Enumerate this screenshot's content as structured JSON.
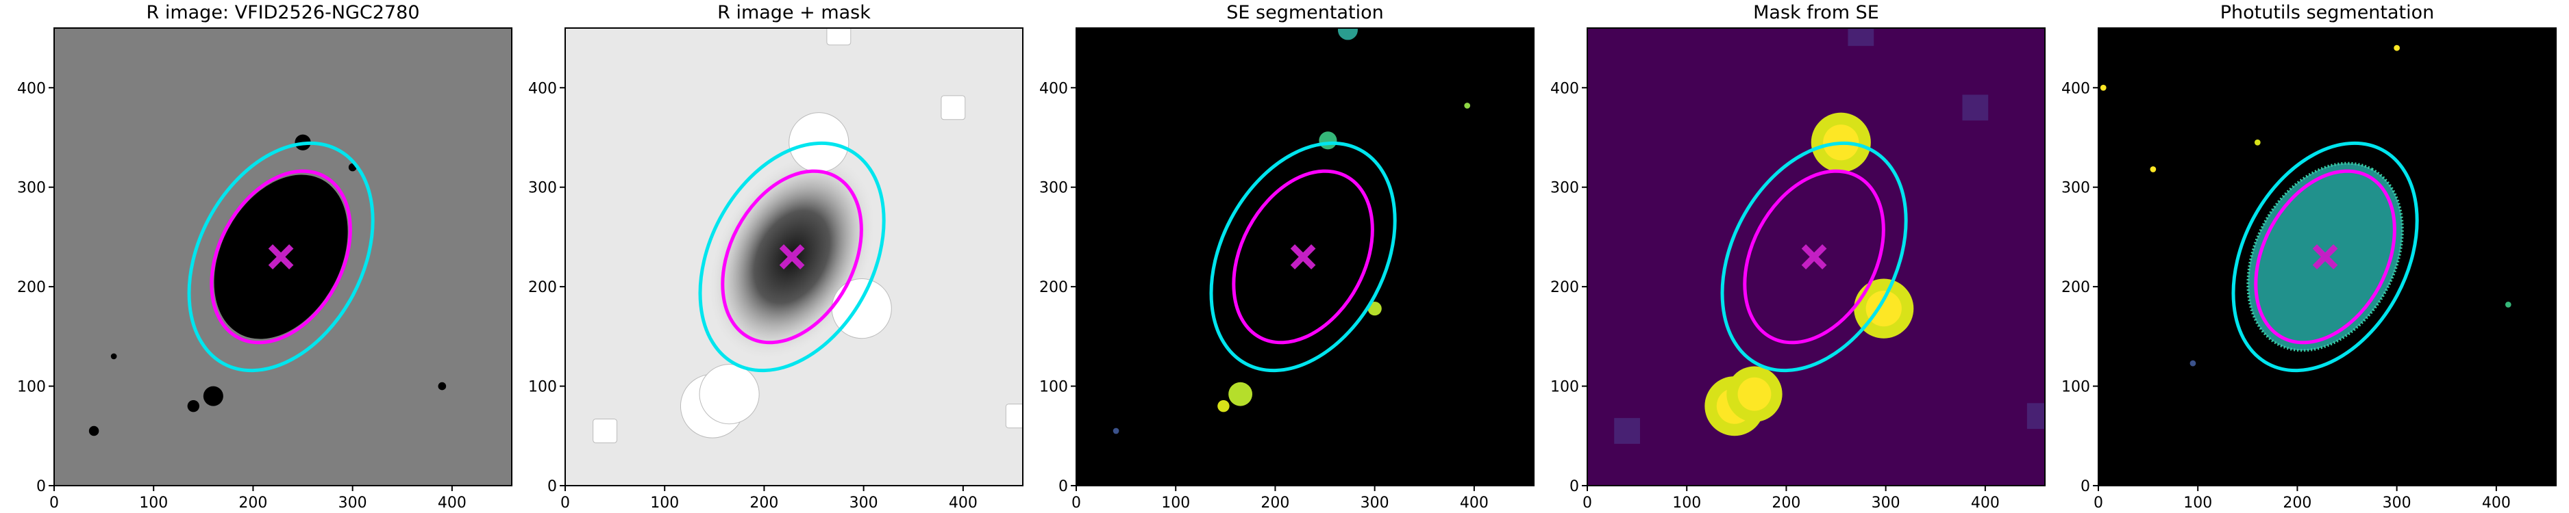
{
  "chart_data": [
    {
      "type": "image",
      "title": "R image: VFID2526-NGC2780",
      "background": "#7f7f7f",
      "xlim": [
        0,
        460
      ],
      "ylim": [
        0,
        460
      ],
      "xticks": [
        0,
        100,
        200,
        300,
        400
      ],
      "yticks": [
        0,
        100,
        200,
        300,
        400
      ],
      "ellipses": [
        {
          "center": [
            228,
            230
          ],
          "semi_axes": [
            92,
            62
          ],
          "angle": 62,
          "color": "#ff00ff"
        },
        {
          "center": [
            228,
            230
          ],
          "semi_axes": [
            122,
            82
          ],
          "angle": 62,
          "color": "#00e5ee"
        }
      ],
      "marker": {
        "x": 228,
        "y": 230,
        "color": "#c41fc4"
      }
    },
    {
      "type": "image",
      "title": "R image + mask",
      "background": "#e8e8e8",
      "xlim": [
        0,
        460
      ],
      "ylim": [
        0,
        460
      ],
      "xticks": [
        0,
        100,
        200,
        300,
        400
      ],
      "yticks": [
        0,
        100,
        200,
        300,
        400
      ],
      "ellipses": [
        {
          "center": [
            228,
            230
          ],
          "semi_axes": [
            92,
            62
          ],
          "angle": 62,
          "color": "#ff00ff"
        },
        {
          "center": [
            228,
            230
          ],
          "semi_axes": [
            122,
            82
          ],
          "angle": 62,
          "color": "#00e5ee"
        }
      ],
      "marker": {
        "x": 228,
        "y": 230,
        "color": "#c41fc4"
      }
    },
    {
      "type": "image",
      "title": "SE segmentation",
      "background": "#000000",
      "xlim": [
        0,
        460
      ],
      "ylim": [
        0,
        460
      ],
      "xticks": [
        0,
        100,
        200,
        300,
        400
      ],
      "yticks": [
        0,
        100,
        200,
        300,
        400
      ],
      "ellipses": [
        {
          "center": [
            228,
            230
          ],
          "semi_axes": [
            92,
            62
          ],
          "angle": 62,
          "color": "#ff00ff"
        },
        {
          "center": [
            228,
            230
          ],
          "semi_axes": [
            122,
            82
          ],
          "angle": 62,
          "color": "#00e5ee"
        }
      ],
      "marker": {
        "x": 228,
        "y": 230,
        "color": "#c41fc4"
      }
    },
    {
      "type": "image",
      "title": "Mask from SE",
      "background": "#440154",
      "xlim": [
        0,
        460
      ],
      "ylim": [
        0,
        460
      ],
      "xticks": [
        0,
        100,
        200,
        300,
        400
      ],
      "yticks": [
        0,
        100,
        200,
        300,
        400
      ],
      "ellipses": [
        {
          "center": [
            228,
            230
          ],
          "semi_axes": [
            92,
            62
          ],
          "angle": 62,
          "color": "#ff00ff"
        },
        {
          "center": [
            228,
            230
          ],
          "semi_axes": [
            122,
            82
          ],
          "angle": 62,
          "color": "#00e5ee"
        }
      ],
      "marker": {
        "x": 228,
        "y": 230,
        "color": "#c41fc4"
      }
    },
    {
      "type": "image",
      "title": "Photutils segmentation",
      "background": "#000000",
      "xlim": [
        0,
        460
      ],
      "ylim": [
        0,
        460
      ],
      "xticks": [
        0,
        100,
        200,
        300,
        400
      ],
      "yticks": [
        0,
        100,
        200,
        300,
        400
      ],
      "ellipses": [
        {
          "center": [
            228,
            230
          ],
          "semi_axes": [
            92,
            62
          ],
          "angle": 62,
          "color": "#ff00ff"
        },
        {
          "center": [
            228,
            230
          ],
          "semi_axes": [
            122,
            82
          ],
          "angle": 62,
          "color": "#00e5ee"
        }
      ],
      "marker": {
        "x": 228,
        "y": 230,
        "color": "#c41fc4"
      }
    }
  ]
}
